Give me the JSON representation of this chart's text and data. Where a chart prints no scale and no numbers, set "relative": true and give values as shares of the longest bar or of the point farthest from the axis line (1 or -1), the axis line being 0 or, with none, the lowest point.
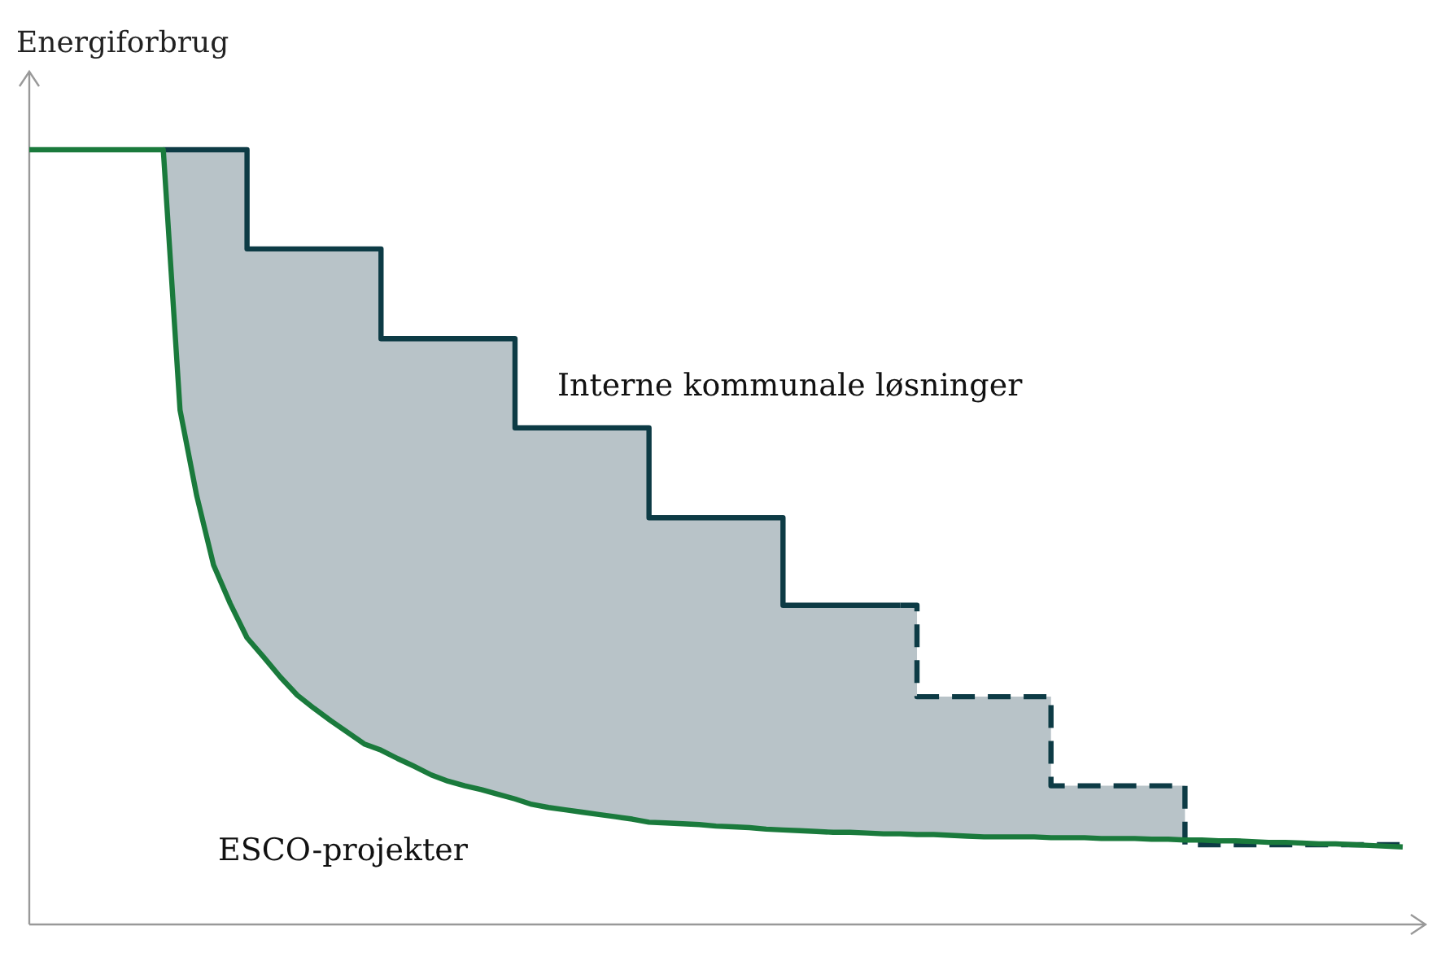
{
  "chart_data": {
    "type": "line",
    "ylabel": "Energiforbrug",
    "relative": true,
    "categories": [
      null,
      null,
      null,
      null,
      null,
      null,
      null,
      null,
      null,
      null,
      null,
      null,
      null,
      null,
      null,
      null,
      null,
      null,
      null,
      null,
      null,
      null,
      null,
      null,
      null,
      null,
      null,
      null,
      null,
      null,
      null,
      null,
      null,
      null,
      null,
      null,
      null,
      null,
      null,
      null,
      null,
      null,
      null,
      null,
      null,
      null,
      null,
      null,
      null,
      null,
      null,
      null,
      null,
      null,
      null,
      null,
      null,
      null,
      null,
      null,
      null,
      null,
      null,
      null,
      null,
      null,
      null,
      null,
      null,
      null,
      null,
      null,
      null,
      null,
      null,
      null,
      null,
      null,
      null,
      null,
      null,
      null,
      null
    ],
    "series": [
      {
        "type": "area",
        "color": "#b8c3c8",
        "values": [
          null,
          null,
          null,
          null,
          null,
          null,
          null,
          null,
          1,
          1,
          1,
          1,
          1,
          0.872,
          0.872,
          0.872,
          0.872,
          0.872,
          0.872,
          0.872,
          0.872,
          0.756,
          0.756,
          0.756,
          0.756,
          0.756,
          0.756,
          0.756,
          0.756,
          0.641,
          0.641,
          0.641,
          0.641,
          0.641,
          0.641,
          0.641,
          0.641,
          0.525,
          0.525,
          0.525,
          0.525,
          0.525,
          0.525,
          0.525,
          0.525,
          0.412,
          0.412,
          0.412,
          0.412,
          0.412,
          0.412,
          0.412,
          0.412,
          0.294,
          0.294,
          0.294,
          0.294,
          0.294,
          0.294,
          0.294,
          0.294,
          0.179,
          0.179,
          0.179,
          0.179,
          0.179,
          0.179,
          0.179,
          0.179,
          0.109,
          null,
          null,
          null,
          null,
          null,
          null,
          null,
          null,
          null,
          null,
          null,
          null,
          null
        ]
      },
      {
        "type": "step",
        "name": "Interne kommunale løsninger",
        "color": "#0d3b45",
        "line_style": "solid",
        "values": [
          null,
          null,
          null,
          null,
          null,
          null,
          null,
          null,
          1,
          1,
          1,
          1,
          1,
          0.872,
          0.872,
          0.872,
          0.872,
          0.872,
          0.872,
          0.872,
          0.872,
          0.756,
          0.756,
          0.756,
          0.756,
          0.756,
          0.756,
          0.756,
          0.756,
          0.641,
          0.641,
          0.641,
          0.641,
          0.641,
          0.641,
          0.641,
          0.641,
          0.525,
          0.525,
          0.525,
          0.525,
          0.525,
          0.525,
          0.525,
          0.525,
          0.412,
          0.412,
          0.412,
          0.412,
          0.412,
          0.412,
          0.412,
          0.412,
          null,
          null,
          null,
          null,
          null,
          null,
          null,
          null,
          null,
          null,
          null,
          null,
          null,
          null,
          null,
          null,
          null,
          null,
          null,
          null,
          null,
          null,
          null,
          null,
          null,
          null,
          null,
          null,
          null,
          null
        ]
      },
      {
        "type": "step",
        "color": "#0d3b45",
        "line_style": "dashed",
        "values": [
          null,
          null,
          null,
          null,
          null,
          null,
          null,
          null,
          null,
          null,
          null,
          null,
          null,
          null,
          null,
          null,
          null,
          null,
          null,
          null,
          null,
          null,
          null,
          null,
          null,
          null,
          null,
          null,
          null,
          null,
          null,
          null,
          null,
          null,
          null,
          null,
          null,
          null,
          null,
          null,
          null,
          null,
          null,
          null,
          null,
          null,
          null,
          null,
          null,
          null,
          null,
          null,
          0.412,
          0.294,
          0.294,
          0.294,
          0.294,
          0.294,
          0.294,
          0.294,
          0.294,
          0.179,
          0.179,
          0.179,
          0.179,
          0.179,
          0.179,
          0.179,
          0.179,
          0.103,
          0.103,
          0.103,
          0.103,
          0.103,
          0.103,
          0.103,
          0.103,
          0.103,
          0.103,
          0.103,
          0.103,
          0.103,
          0.103
        ]
      },
      {
        "name": "ESCO-projekter",
        "color": "#1a7a3c",
        "line_style": "solid",
        "values": [
          1,
          1,
          1,
          1,
          1,
          1,
          1,
          1,
          1,
          0.664,
          0.553,
          0.464,
          0.414,
          0.37,
          0.345,
          0.319,
          0.296,
          0.279,
          0.263,
          0.248,
          0.233,
          0.225,
          0.214,
          0.204,
          0.193,
          0.185,
          0.179,
          0.174,
          0.168,
          0.162,
          0.155,
          0.151,
          0.148,
          0.145,
          0.142,
          0.139,
          0.136,
          0.132,
          0.131,
          0.13,
          0.129,
          0.127,
          0.126,
          0.125,
          0.123,
          0.122,
          0.121,
          0.12,
          0.119,
          0.119,
          0.118,
          0.117,
          0.117,
          0.116,
          0.116,
          0.115,
          0.114,
          0.113,
          0.113,
          0.113,
          0.113,
          0.112,
          0.112,
          0.112,
          0.111,
          0.111,
          0.111,
          0.11,
          0.11,
          0.109,
          0.109,
          0.108,
          0.108,
          0.107,
          0.106,
          0.106,
          0.105,
          0.104,
          0.104,
          0.103,
          0.102,
          0.101,
          0.1
        ]
      }
    ]
  }
}
